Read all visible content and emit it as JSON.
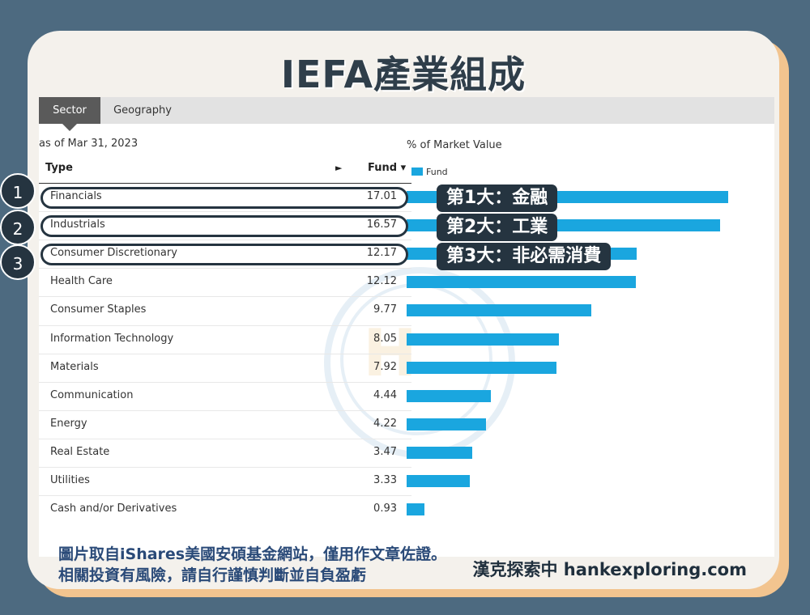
{
  "page": {
    "title": "IEFA產業組成"
  },
  "tabs": [
    {
      "label": "Sector",
      "active": true
    },
    {
      "label": "Geography",
      "active": false
    }
  ],
  "as_of": "as of Mar 31, 2023",
  "table": {
    "col_type": "Type",
    "col_arrow": "►",
    "col_fund": "Fund ▾",
    "axis_label": "% of Market Value",
    "legend_label": "Fund"
  },
  "callouts": [
    {
      "num": "1",
      "text": "第1大：金融"
    },
    {
      "num": "2",
      "text": "第2大：工業"
    },
    {
      "num": "3",
      "text": "第3大：非必需消費"
    }
  ],
  "footer": {
    "line1": "圖片取自iShares美國安碩基金網站，僅用作文章佐證。",
    "line2": "相關投資有風險，請自行謹慎判斷並自負盈虧",
    "brand": "漢克探索中 hankexploring.com"
  },
  "colors": {
    "bar": "#1aa6df",
    "dark": "#253440",
    "background": "#4d6a80",
    "accent": "#f2c48f"
  },
  "chart_data": {
    "type": "bar",
    "orientation": "horizontal",
    "categories": [
      "Financials",
      "Industrials",
      "Consumer Discretionary",
      "Health Care",
      "Consumer Staples",
      "Information Technology",
      "Materials",
      "Communication",
      "Energy",
      "Real Estate",
      "Utilities",
      "Cash and/or Derivatives"
    ],
    "series": [
      {
        "name": "Fund",
        "values": [
          17.01,
          16.57,
          12.17,
          12.12,
          9.77,
          8.05,
          7.92,
          4.44,
          4.22,
          3.47,
          3.33,
          0.93
        ],
        "labels": [
          "17.01",
          "16.57",
          "12.17",
          "12.12",
          "9.77",
          "8.05",
          "7.92",
          "4.44",
          "4.22",
          "3.47",
          "3.33",
          "0.93"
        ]
      }
    ],
    "title": "",
    "xlabel": "% of Market Value",
    "ylabel": "Type",
    "xlim": [
      0,
      18
    ],
    "grid": false,
    "legend": "top-left"
  }
}
